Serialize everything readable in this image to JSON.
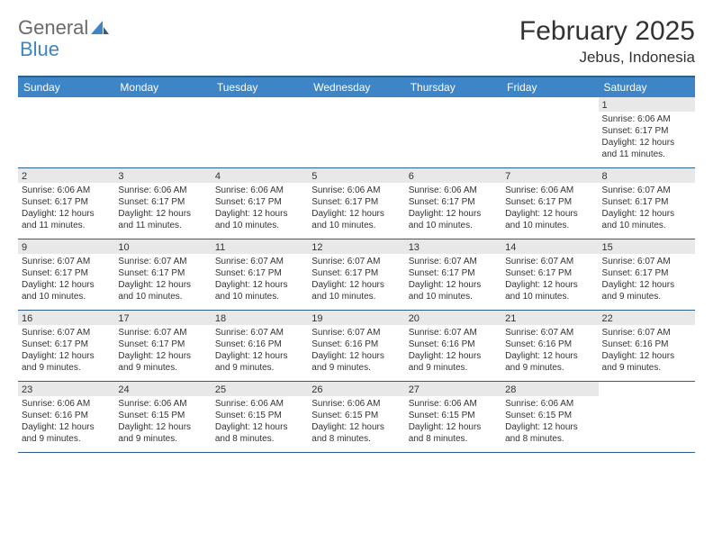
{
  "logo": {
    "word1": "General",
    "word2": "Blue",
    "accent_color": "#3d85c6"
  },
  "title": "February 2025",
  "location": "Jebus, Indonesia",
  "colors": {
    "header_bg": "#3d85c6",
    "header_text": "#ffffff",
    "row_border": "#2e5e8a",
    "daynum_bg": "#e8e8e8",
    "text": "#333333",
    "background": "#ffffff"
  },
  "day_labels": [
    "Sunday",
    "Monday",
    "Tuesday",
    "Wednesday",
    "Thursday",
    "Friday",
    "Saturday"
  ],
  "weeks": [
    [
      {
        "n": "",
        "sr": "",
        "ss": "",
        "dl": ""
      },
      {
        "n": "",
        "sr": "",
        "ss": "",
        "dl": ""
      },
      {
        "n": "",
        "sr": "",
        "ss": "",
        "dl": ""
      },
      {
        "n": "",
        "sr": "",
        "ss": "",
        "dl": ""
      },
      {
        "n": "",
        "sr": "",
        "ss": "",
        "dl": ""
      },
      {
        "n": "",
        "sr": "",
        "ss": "",
        "dl": ""
      },
      {
        "n": "1",
        "sr": "Sunrise: 6:06 AM",
        "ss": "Sunset: 6:17 PM",
        "dl": "Daylight: 12 hours and 11 minutes."
      }
    ],
    [
      {
        "n": "2",
        "sr": "Sunrise: 6:06 AM",
        "ss": "Sunset: 6:17 PM",
        "dl": "Daylight: 12 hours and 11 minutes."
      },
      {
        "n": "3",
        "sr": "Sunrise: 6:06 AM",
        "ss": "Sunset: 6:17 PM",
        "dl": "Daylight: 12 hours and 11 minutes."
      },
      {
        "n": "4",
        "sr": "Sunrise: 6:06 AM",
        "ss": "Sunset: 6:17 PM",
        "dl": "Daylight: 12 hours and 10 minutes."
      },
      {
        "n": "5",
        "sr": "Sunrise: 6:06 AM",
        "ss": "Sunset: 6:17 PM",
        "dl": "Daylight: 12 hours and 10 minutes."
      },
      {
        "n": "6",
        "sr": "Sunrise: 6:06 AM",
        "ss": "Sunset: 6:17 PM",
        "dl": "Daylight: 12 hours and 10 minutes."
      },
      {
        "n": "7",
        "sr": "Sunrise: 6:06 AM",
        "ss": "Sunset: 6:17 PM",
        "dl": "Daylight: 12 hours and 10 minutes."
      },
      {
        "n": "8",
        "sr": "Sunrise: 6:07 AM",
        "ss": "Sunset: 6:17 PM",
        "dl": "Daylight: 12 hours and 10 minutes."
      }
    ],
    [
      {
        "n": "9",
        "sr": "Sunrise: 6:07 AM",
        "ss": "Sunset: 6:17 PM",
        "dl": "Daylight: 12 hours and 10 minutes."
      },
      {
        "n": "10",
        "sr": "Sunrise: 6:07 AM",
        "ss": "Sunset: 6:17 PM",
        "dl": "Daylight: 12 hours and 10 minutes."
      },
      {
        "n": "11",
        "sr": "Sunrise: 6:07 AM",
        "ss": "Sunset: 6:17 PM",
        "dl": "Daylight: 12 hours and 10 minutes."
      },
      {
        "n": "12",
        "sr": "Sunrise: 6:07 AM",
        "ss": "Sunset: 6:17 PM",
        "dl": "Daylight: 12 hours and 10 minutes."
      },
      {
        "n": "13",
        "sr": "Sunrise: 6:07 AM",
        "ss": "Sunset: 6:17 PM",
        "dl": "Daylight: 12 hours and 10 minutes."
      },
      {
        "n": "14",
        "sr": "Sunrise: 6:07 AM",
        "ss": "Sunset: 6:17 PM",
        "dl": "Daylight: 12 hours and 10 minutes."
      },
      {
        "n": "15",
        "sr": "Sunrise: 6:07 AM",
        "ss": "Sunset: 6:17 PM",
        "dl": "Daylight: 12 hours and 9 minutes."
      }
    ],
    [
      {
        "n": "16",
        "sr": "Sunrise: 6:07 AM",
        "ss": "Sunset: 6:17 PM",
        "dl": "Daylight: 12 hours and 9 minutes."
      },
      {
        "n": "17",
        "sr": "Sunrise: 6:07 AM",
        "ss": "Sunset: 6:17 PM",
        "dl": "Daylight: 12 hours and 9 minutes."
      },
      {
        "n": "18",
        "sr": "Sunrise: 6:07 AM",
        "ss": "Sunset: 6:16 PM",
        "dl": "Daylight: 12 hours and 9 minutes."
      },
      {
        "n": "19",
        "sr": "Sunrise: 6:07 AM",
        "ss": "Sunset: 6:16 PM",
        "dl": "Daylight: 12 hours and 9 minutes."
      },
      {
        "n": "20",
        "sr": "Sunrise: 6:07 AM",
        "ss": "Sunset: 6:16 PM",
        "dl": "Daylight: 12 hours and 9 minutes."
      },
      {
        "n": "21",
        "sr": "Sunrise: 6:07 AM",
        "ss": "Sunset: 6:16 PM",
        "dl": "Daylight: 12 hours and 9 minutes."
      },
      {
        "n": "22",
        "sr": "Sunrise: 6:07 AM",
        "ss": "Sunset: 6:16 PM",
        "dl": "Daylight: 12 hours and 9 minutes."
      }
    ],
    [
      {
        "n": "23",
        "sr": "Sunrise: 6:06 AM",
        "ss": "Sunset: 6:16 PM",
        "dl": "Daylight: 12 hours and 9 minutes."
      },
      {
        "n": "24",
        "sr": "Sunrise: 6:06 AM",
        "ss": "Sunset: 6:15 PM",
        "dl": "Daylight: 12 hours and 9 minutes."
      },
      {
        "n": "25",
        "sr": "Sunrise: 6:06 AM",
        "ss": "Sunset: 6:15 PM",
        "dl": "Daylight: 12 hours and 8 minutes."
      },
      {
        "n": "26",
        "sr": "Sunrise: 6:06 AM",
        "ss": "Sunset: 6:15 PM",
        "dl": "Daylight: 12 hours and 8 minutes."
      },
      {
        "n": "27",
        "sr": "Sunrise: 6:06 AM",
        "ss": "Sunset: 6:15 PM",
        "dl": "Daylight: 12 hours and 8 minutes."
      },
      {
        "n": "28",
        "sr": "Sunrise: 6:06 AM",
        "ss": "Sunset: 6:15 PM",
        "dl": "Daylight: 12 hours and 8 minutes."
      },
      {
        "n": "",
        "sr": "",
        "ss": "",
        "dl": ""
      }
    ]
  ]
}
